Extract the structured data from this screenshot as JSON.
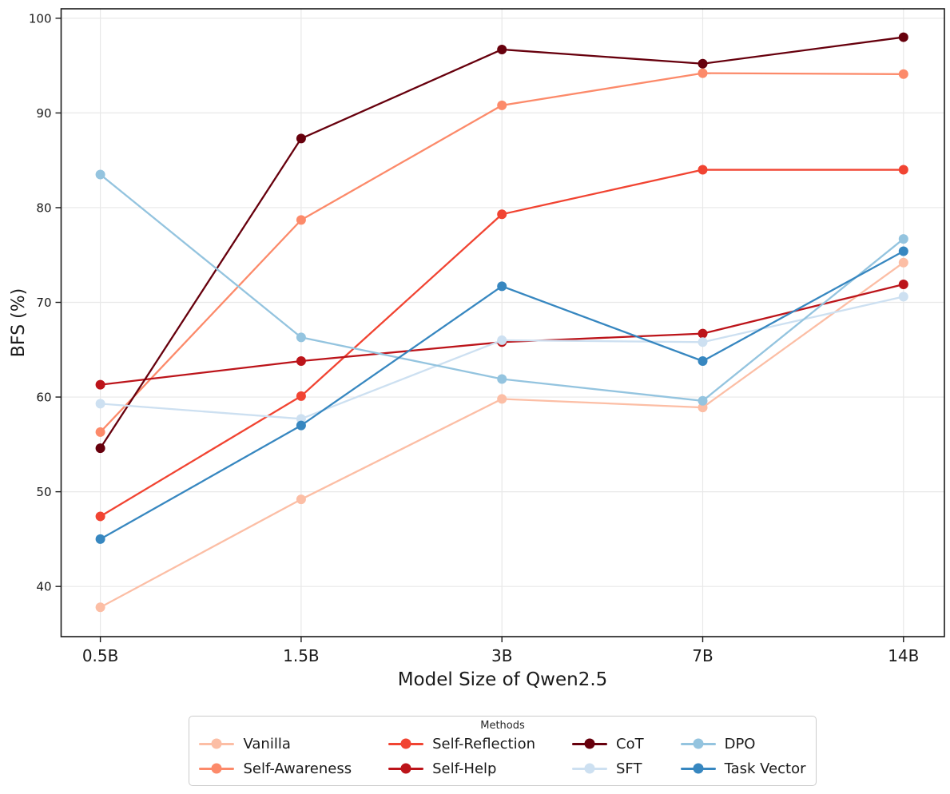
{
  "chart_data": {
    "type": "line",
    "title": "",
    "xlabel": "Model Size of Qwen2.5",
    "ylabel": "BFS (%)",
    "categories": [
      "0.5B",
      "1.5B",
      "3B",
      "7B",
      "14B"
    ],
    "yticks": [
      40,
      50,
      60,
      70,
      80,
      90,
      100
    ],
    "ylim": [
      34.7,
      101.0
    ],
    "grid": true,
    "grid_color": "#e8e8e8",
    "spine_color": "#1a1a1a",
    "legend": {
      "title": "Methods",
      "position": "below-chart",
      "rows": 2,
      "columns": 4,
      "fill": "column-major"
    },
    "series": [
      {
        "name": "Vanilla",
        "color": "#fcbea5",
        "values": [
          37.8,
          49.2,
          59.8,
          58.9,
          74.2
        ]
      },
      {
        "name": "Self-Awareness",
        "color": "#fc8a6a",
        "values": [
          56.3,
          78.7,
          90.8,
          94.2,
          94.1
        ]
      },
      {
        "name": "Self-Reflection",
        "color": "#f14432",
        "values": [
          47.4,
          60.1,
          79.3,
          84.0,
          84.0
        ]
      },
      {
        "name": "Self-Help",
        "color": "#bc141a",
        "values": [
          61.3,
          63.8,
          65.8,
          66.7,
          71.9
        ]
      },
      {
        "name": "CoT",
        "color": "#67000d",
        "values": [
          54.6,
          87.3,
          96.7,
          95.2,
          98.0
        ]
      },
      {
        "name": "SFT",
        "color": "#cde0f1",
        "values": [
          59.3,
          57.7,
          66.0,
          65.8,
          70.6
        ]
      },
      {
        "name": "DPO",
        "color": "#94c4df",
        "values": [
          83.5,
          66.3,
          61.9,
          59.6,
          76.7
        ]
      },
      {
        "name": "Task Vector",
        "color": "#3787c0",
        "values": [
          45.0,
          57.0,
          71.7,
          63.8,
          75.4
        ]
      }
    ]
  }
}
